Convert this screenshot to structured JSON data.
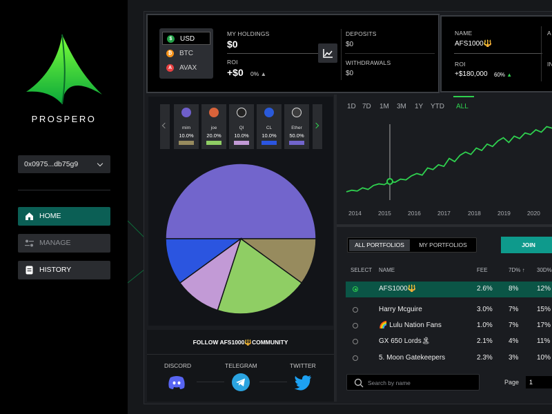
{
  "brand": {
    "name": "PROSPERO"
  },
  "wallet": {
    "address": "0x0975...db75g9"
  },
  "nav": {
    "home": "HOME",
    "manage": "MANAGE",
    "history": "HISTORY"
  },
  "currencies": [
    {
      "label": "USD",
      "icon": "dollar-icon",
      "color": "#24a148",
      "glyph": "$"
    },
    {
      "label": "BTC",
      "icon": "bitcoin-icon",
      "color": "#f7931a",
      "glyph": "₿"
    },
    {
      "label": "AVAX",
      "icon": "avax-icon",
      "color": "#e84142",
      "glyph": "A"
    }
  ],
  "holdings": {
    "my_holdings_label": "MY HOLDINGS",
    "my_holdings_value": "$0",
    "roi_label": "ROI",
    "roi_value": "+$0",
    "roi_pct": "0%",
    "deposits_label": "DEPOSITS",
    "deposits_value": "$0",
    "withdrawals_label": "WITHDRAWALS",
    "withdrawals_value": "$0"
  },
  "portfolio_card": {
    "name_label": "NAME",
    "name_value": "AFS1000🔱",
    "roi_label": "ROI",
    "roi_value": "+$180,000",
    "roi_pct": "60%",
    "partial_label_1": "A",
    "partial_label_2": "IN"
  },
  "tokens": [
    {
      "name": "mim",
      "pct": "10.0%",
      "color": "#978b5e",
      "dot": "#6f5fcb"
    },
    {
      "name": "joe",
      "pct": "20.0%",
      "color": "#8fce64",
      "dot": "#d9633a"
    },
    {
      "name": "QI",
      "pct": "10.0%",
      "color": "#c29ad6",
      "dot": "#222222"
    },
    {
      "name": "CL",
      "pct": "10.0%",
      "color": "#2b55e0",
      "dot": "#2a5ada"
    },
    {
      "name": "Ether",
      "pct": "50.0%",
      "color": "#7265cc",
      "dot": "#3c3c3d"
    }
  ],
  "pie": [
    {
      "name": "Ether",
      "value": 50,
      "color": "#7265cc"
    },
    {
      "name": "mim",
      "value": 10,
      "color": "#978b5e"
    },
    {
      "name": "joe",
      "value": 20,
      "color": "#8fce64"
    },
    {
      "name": "QI",
      "value": 10,
      "color": "#c29ad6"
    },
    {
      "name": "CL",
      "value": 10,
      "color": "#2b55e0"
    }
  ],
  "community": {
    "title": "FOLLOW AFS1000🔱COMMUNITY",
    "discord": "DISCORD",
    "telegram": "TELEGRAM",
    "twitter": "TWITTER"
  },
  "ranges": [
    "1D",
    "7D",
    "1M",
    "3M",
    "1Y",
    "YTD",
    "ALL"
  ],
  "years": [
    "2014",
    "2015",
    "2016",
    "2017",
    "2018",
    "2019",
    "2020"
  ],
  "chart_data": {
    "type": "line",
    "x_ticks": [
      "2014",
      "2015",
      "2016",
      "2017",
      "2018",
      "2019",
      "2020"
    ],
    "series": [
      {
        "values": [
          10,
          12,
          11,
          15,
          13,
          18,
          20,
          19,
          23,
          22,
          26,
          25,
          30,
          33,
          31,
          40,
          38,
          44,
          42,
          52,
          48,
          56,
          60,
          57,
          65,
          62,
          70,
          67,
          74,
          78,
          72,
          80,
          77,
          84,
          82,
          88,
          85,
          92,
          90,
          95
        ]
      }
    ],
    "color": "#2fd14f"
  },
  "portfolios": {
    "tab_all": "ALL PORTFOLIOS",
    "tab_my": "MY PORTFOLIOS",
    "join": "JOIN",
    "headers": {
      "select": "SELECT",
      "name": "NAME",
      "fee": "FEE",
      "d7": "7D% ↑",
      "d30": "30D%"
    },
    "rows": [
      {
        "name": "AFS1000🔱",
        "fee": "2.6%",
        "d7": "8%",
        "d30": "12%",
        "selected": true
      },
      {
        "name": "Harry Mcguire",
        "fee": "3.0%",
        "d7": "7%",
        "d30": "15%",
        "selected": false
      },
      {
        "name": "🌈 Lulu Nation Fans",
        "fee": "1.0%",
        "d7": "7%",
        "d30": "17%",
        "selected": false
      },
      {
        "name": "GX 650 Lords🏝",
        "fee": "2.1%",
        "d7": "4%",
        "d30": "11%",
        "selected": false
      },
      {
        "name": "5. Moon Gatekeepers",
        "fee": "2.3%",
        "d7": "3%",
        "d30": "10%",
        "selected": false
      }
    ],
    "search_placeholder": "Search by name",
    "page_label": "Page",
    "page_value": "1"
  }
}
